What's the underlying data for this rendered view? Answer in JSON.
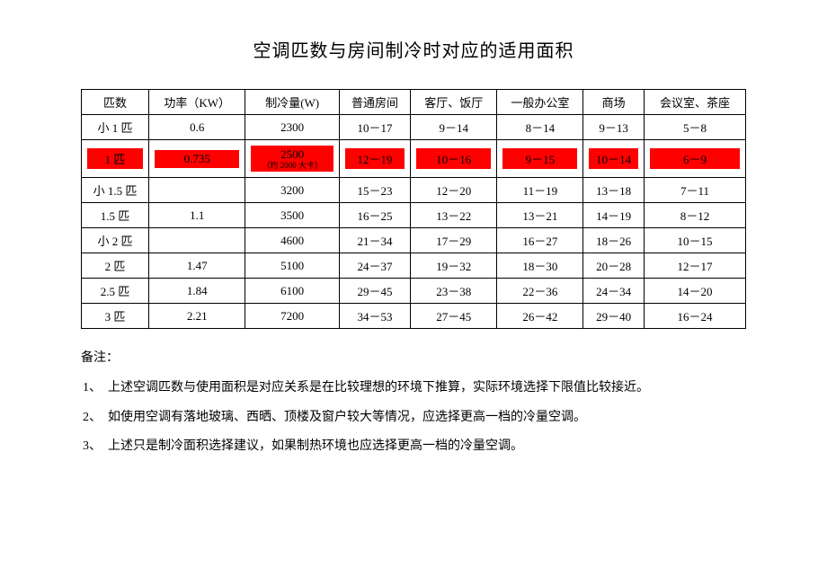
{
  "title": "空调匹数与房间制冷时对应的适用面积",
  "headers": [
    "匹数",
    "功率（KW）",
    "制冷量(W)",
    "普通房间",
    "客厅、饭厅",
    "一般办公室",
    "商场",
    "会议室、茶座"
  ],
  "rows": [
    {
      "cells": [
        "小 1 匹",
        "0.6",
        "2300",
        "10－17",
        "9－14",
        "8－14",
        "9－13",
        "5－8"
      ],
      "highlighted": false
    },
    {
      "cells": [
        "1 匹",
        "0.735",
        "2500",
        "12－19",
        "10－16",
        "9－15",
        "10－14",
        "6－9"
      ],
      "highlighted": true,
      "cooling_sub": "（约 2000 大卡）"
    },
    {
      "cells": [
        "小 1.5 匹",
        "",
        "3200",
        "15－23",
        "12－20",
        "11－19",
        "13－18",
        "7－11"
      ],
      "highlighted": false
    },
    {
      "cells": [
        "1.5 匹",
        "1.1",
        "3500",
        "16－25",
        "13－22",
        "13－21",
        "14－19",
        "8－12"
      ],
      "highlighted": false
    },
    {
      "cells": [
        "小 2 匹",
        "",
        "4600",
        "21－34",
        "17－29",
        "16－27",
        "18－26",
        "10－15"
      ],
      "highlighted": false
    },
    {
      "cells": [
        "2 匹",
        "1.47",
        "5100",
        "24－37",
        "19－32",
        "18－30",
        "20－28",
        "12－17"
      ],
      "highlighted": false
    },
    {
      "cells": [
        "2.5 匹",
        "1.84",
        "6100",
        "29－45",
        "23－38",
        "22－36",
        "24－34",
        "14－20"
      ],
      "highlighted": false
    },
    {
      "cells": [
        "3 匹",
        "2.21",
        "7200",
        "34－53",
        "27－45",
        "26－42",
        "29－40",
        "16－24"
      ],
      "highlighted": false
    }
  ],
  "notes_label": "备注：",
  "notes": [
    "1、　上述空调匹数与使用面积是对应关系是在比较理想的环境下推算，实际环境选择下限值比较接近。",
    "2、　如使用空调有落地玻璃、西晒、顶楼及窗户较大等情况，应选择更高一档的冷量空调。",
    "3、　上述只是制冷面积选择建议，如果制热环境也应选择更高一档的冷量空调。"
  ],
  "styling": {
    "highlight_color": "#ff0000",
    "border_color": "#000000",
    "text_color": "#000000",
    "background_color": "#ffffff",
    "title_fontsize": 20,
    "table_fontsize": 13,
    "notes_fontsize": 14,
    "column_widths": [
      "12%",
      "12%",
      "13%",
      "12%",
      "13%",
      "13%",
      "12%",
      "13%"
    ]
  }
}
